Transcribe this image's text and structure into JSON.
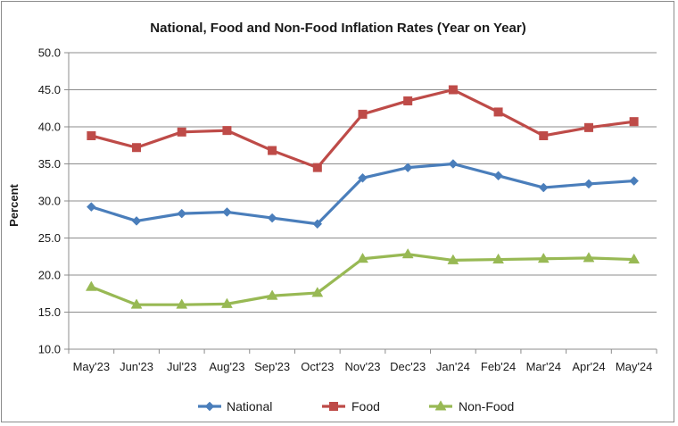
{
  "chart_data": {
    "type": "line",
    "title": "National, Food and Non-Food Inflation Rates (Year on Year)",
    "xlabel": "",
    "ylabel": "Percent",
    "ylim": [
      10.0,
      50.0
    ],
    "yticks": [
      "10.0",
      "15.0",
      "20.0",
      "25.0",
      "30.0",
      "35.0",
      "40.0",
      "45.0",
      "50.0"
    ],
    "grid": true,
    "legend_position": "bottom",
    "categories": [
      "May'23",
      "Jun'23",
      "Jul'23",
      "Aug'23",
      "Sep'23",
      "Oct'23",
      "Nov'23",
      "Dec'23",
      "Jan'24",
      "Feb'24",
      "Mar'24",
      "Apr'24",
      "May'24"
    ],
    "series": [
      {
        "name": "National",
        "color": "#4a7ebb",
        "marker": "diamond",
        "values": [
          29.2,
          27.3,
          28.3,
          28.5,
          27.7,
          26.9,
          33.1,
          34.5,
          35.0,
          33.4,
          31.8,
          32.3,
          32.7
        ]
      },
      {
        "name": "Food",
        "color": "#be4b48",
        "marker": "square",
        "values": [
          38.8,
          37.2,
          39.3,
          39.5,
          36.8,
          34.5,
          41.7,
          43.5,
          45.0,
          42.0,
          38.8,
          39.9,
          40.7
        ]
      },
      {
        "name": "Non-Food",
        "color": "#98b954",
        "marker": "triangle",
        "values": [
          18.4,
          16.0,
          16.0,
          16.1,
          17.2,
          17.6,
          22.2,
          22.8,
          22.0,
          22.1,
          22.2,
          22.3,
          22.1
        ]
      }
    ]
  }
}
